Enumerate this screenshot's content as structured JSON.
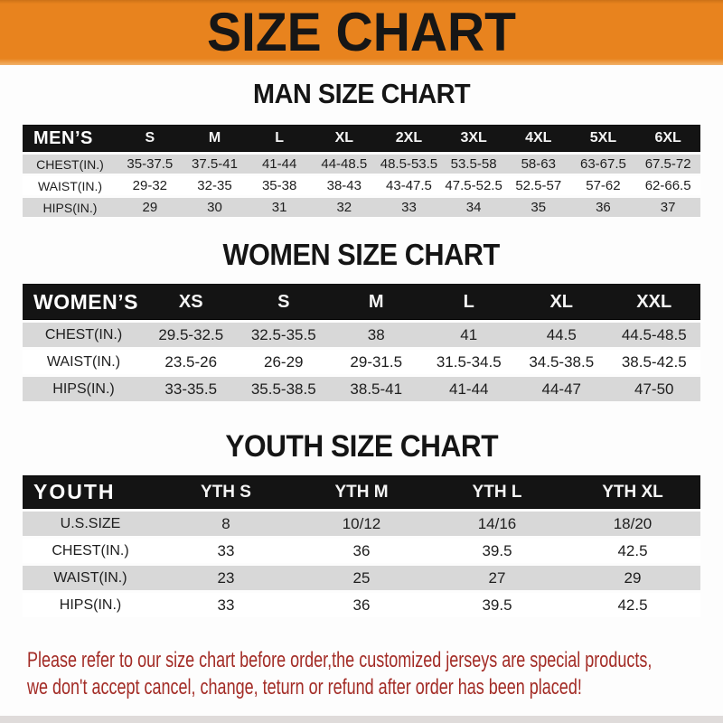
{
  "banner": {
    "title": "SIZE CHART"
  },
  "colors": {
    "banner_bg": "#E8831E",
    "header_bar_bg": "#141414",
    "row_alt_gray": "#D8D8D8",
    "footer_red": "#A32C26"
  },
  "sections": [
    {
      "title": "MAN SIZE CHART",
      "header_label": "MEN’S",
      "columns": [
        "S",
        "M",
        "L",
        "XL",
        "2XL",
        "3XL",
        "4XL",
        "5XL",
        "6XL"
      ],
      "rows": [
        {
          "label": "CHEST(IN.)",
          "values": [
            "35-37.5",
            "37.5-41",
            "41-44",
            "44-48.5",
            "48.5-53.5",
            "53.5-58",
            "58-63",
            "63-67.5",
            "67.5-72"
          ]
        },
        {
          "label": "WAIST(IN.)",
          "values": [
            "29-32",
            "32-35",
            "35-38",
            "38-43",
            "43-47.5",
            "47.5-52.5",
            "52.5-57",
            "57-62",
            "62-66.5"
          ]
        },
        {
          "label": "HIPS(IN.)",
          "values": [
            "29",
            "30",
            "31",
            "32",
            "33",
            "34",
            "35",
            "36",
            "37"
          ]
        }
      ]
    },
    {
      "title": "WOMEN SIZE CHART",
      "header_label": "WOMEN’S",
      "columns": [
        "XS",
        "S",
        "M",
        "L",
        "XL",
        "XXL"
      ],
      "rows": [
        {
          "label": "CHEST(IN.)",
          "values": [
            "29.5-32.5",
            "32.5-35.5",
            "38",
            "41",
            "44.5",
            "44.5-48.5"
          ]
        },
        {
          "label": "WAIST(IN.)",
          "values": [
            "23.5-26",
            "26-29",
            "29-31.5",
            "31.5-34.5",
            "34.5-38.5",
            "38.5-42.5"
          ]
        },
        {
          "label": "HIPS(IN.)",
          "values": [
            "33-35.5",
            "35.5-38.5",
            "38.5-41",
            "41-44",
            "44-47",
            "47-50"
          ]
        }
      ]
    },
    {
      "title": "YOUTH SIZE CHART",
      "header_label": "YOUTH",
      "columns": [
        "YTH S",
        "YTH M",
        "YTH L",
        "YTH XL"
      ],
      "rows": [
        {
          "label": "U.S.SIZE",
          "values": [
            "8",
            "10/12",
            "14/16",
            "18/20"
          ]
        },
        {
          "label": "CHEST(IN.)",
          "values": [
            "33",
            "36",
            "39.5",
            "42.5"
          ]
        },
        {
          "label": "WAIST(IN.)",
          "values": [
            "23",
            "25",
            "27",
            "29"
          ]
        },
        {
          "label": "HIPS(IN.)",
          "values": [
            "33",
            "36",
            "39.5",
            "42.5"
          ]
        }
      ]
    }
  ],
  "footer": {
    "line1": "Please refer to our size chart before order,the customized jerseys are special products,",
    "line2": "we don't accept cancel, change, teturn or refund after order has been placed!"
  }
}
